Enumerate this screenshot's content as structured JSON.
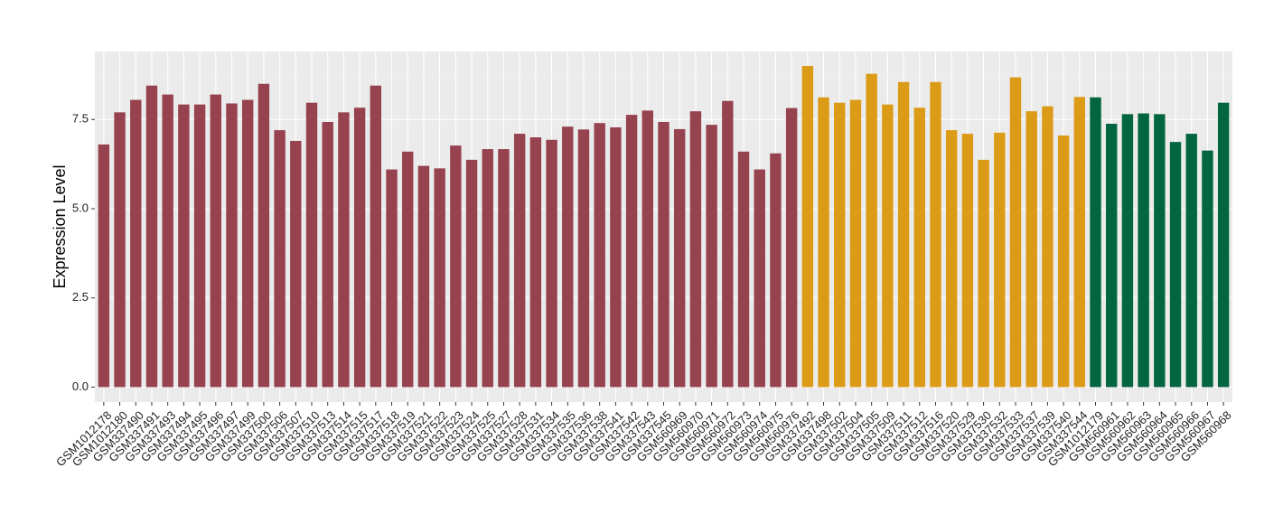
{
  "chart_data": {
    "type": "bar",
    "title": "",
    "xlabel": "",
    "ylabel": "Expression Level",
    "ylim": [
      0,
      9.2
    ],
    "y_ticks": [
      0,
      2.5,
      5,
      7.5
    ],
    "y_tick_labels": [
      "0.0",
      "2.5",
      "5.0",
      "7.5"
    ],
    "grid": true,
    "legend": "none",
    "group_colors": [
      "#96424f",
      "#dc9b16",
      "#036640"
    ],
    "categories": [
      "GSM1012178",
      "GSM1012180",
      "GSM337490",
      "GSM337491",
      "GSM337493",
      "GSM337494",
      "GSM337495",
      "GSM337496",
      "GSM337497",
      "GSM337499",
      "GSM337500",
      "GSM337506",
      "GSM337507",
      "GSM337510",
      "GSM337513",
      "GSM337514",
      "GSM337515",
      "GSM337517",
      "GSM337518",
      "GSM337519",
      "GSM337521",
      "GSM337522",
      "GSM337523",
      "GSM337524",
      "GSM337525",
      "GSM337527",
      "GSM337528",
      "GSM337531",
      "GSM337534",
      "GSM337535",
      "GSM337536",
      "GSM337538",
      "GSM337541",
      "GSM337542",
      "GSM337543",
      "GSM337545",
      "GSM560969",
      "GSM560970",
      "GSM560971",
      "GSM560972",
      "GSM560973",
      "GSM560974",
      "GSM560975",
      "GSM560976",
      "GSM337492",
      "GSM337498",
      "GSM337502",
      "GSM337504",
      "GSM337505",
      "GSM337509",
      "GSM337511",
      "GSM337512",
      "GSM337516",
      "GSM337520",
      "GSM337529",
      "GSM337530",
      "GSM337532",
      "GSM337533",
      "GSM337537",
      "GSM337539",
      "GSM337540",
      "GSM337544",
      "GSM1012179",
      "GSM560961",
      "GSM560962",
      "GSM560963",
      "GSM560964",
      "GSM560965",
      "GSM560966",
      "GSM560967",
      "GSM560968"
    ],
    "values": [
      6.8,
      7.7,
      8.05,
      8.45,
      8.2,
      7.92,
      7.92,
      8.2,
      7.95,
      8.05,
      8.5,
      7.2,
      6.9,
      7.97,
      7.43,
      7.7,
      7.83,
      8.45,
      6.1,
      6.6,
      6.2,
      6.13,
      6.77,
      6.37,
      6.67,
      6.67,
      7.1,
      7.0,
      6.93,
      7.3,
      7.22,
      7.4,
      7.28,
      7.63,
      7.75,
      7.43,
      7.23,
      7.73,
      7.35,
      8.02,
      6.6,
      6.1,
      6.55,
      7.82,
      9.0,
      8.12,
      7.97,
      8.05,
      8.78,
      7.92,
      8.55,
      7.83,
      8.55,
      7.2,
      7.1,
      6.37,
      7.13,
      8.68,
      7.73,
      7.87,
      7.05,
      8.13,
      8.12,
      7.38,
      7.65,
      7.67,
      7.65,
      6.87,
      7.1,
      6.63,
      7.97
    ],
    "groups": [
      0,
      0,
      0,
      0,
      0,
      0,
      0,
      0,
      0,
      0,
      0,
      0,
      0,
      0,
      0,
      0,
      0,
      0,
      0,
      0,
      0,
      0,
      0,
      0,
      0,
      0,
      0,
      0,
      0,
      0,
      0,
      0,
      0,
      0,
      0,
      0,
      0,
      0,
      0,
      0,
      0,
      0,
      0,
      0,
      1,
      1,
      1,
      1,
      1,
      1,
      1,
      1,
      1,
      1,
      1,
      1,
      1,
      1,
      1,
      1,
      1,
      1,
      2,
      2,
      2,
      2,
      2,
      2,
      2,
      2,
      2
    ]
  }
}
